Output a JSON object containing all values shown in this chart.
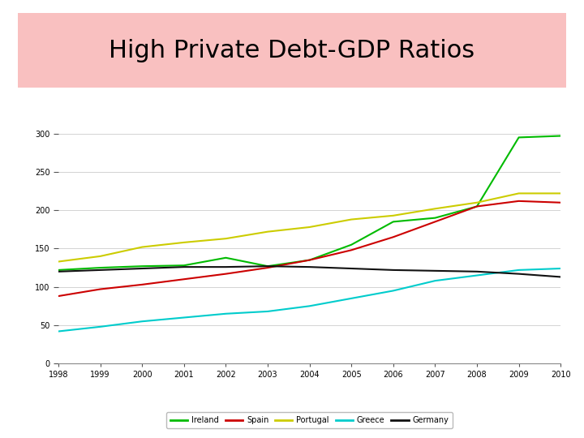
{
  "title": "High Private Debt-GDP Ratios",
  "title_fontsize": 22,
  "title_bg_color": "#f9c0c0",
  "title_border_color": "#d08080",
  "years": [
    1998,
    1999,
    2000,
    2001,
    2002,
    2003,
    2004,
    2005,
    2006,
    2007,
    2008,
    2009,
    2010
  ],
  "series": {
    "Ireland": {
      "color": "#00bb00",
      "values": [
        122,
        125,
        127,
        128,
        138,
        127,
        135,
        155,
        185,
        190,
        205,
        295,
        297
      ]
    },
    "Spain": {
      "color": "#cc0000",
      "values": [
        88,
        97,
        103,
        110,
        117,
        125,
        135,
        148,
        165,
        185,
        205,
        212,
        210
      ]
    },
    "Portugal": {
      "color": "#cccc00",
      "values": [
        133,
        140,
        152,
        158,
        163,
        172,
        178,
        188,
        193,
        202,
        210,
        222,
        222
      ]
    },
    "Greece": {
      "color": "#00cccc",
      "values": [
        42,
        48,
        55,
        60,
        65,
        68,
        75,
        85,
        95,
        108,
        115,
        122,
        124
      ]
    },
    "Germany": {
      "color": "#111111",
      "values": [
        120,
        122,
        124,
        126,
        126,
        127,
        126,
        124,
        122,
        121,
        120,
        117,
        113
      ]
    }
  },
  "xlim": [
    1998,
    2010
  ],
  "ylim": [
    0,
    320
  ],
  "yticks": [
    0,
    50,
    100,
    150,
    200,
    250,
    300
  ],
  "xticks": [
    1998,
    1999,
    2000,
    2001,
    2002,
    2003,
    2004,
    2005,
    2006,
    2007,
    2008,
    2009,
    2010
  ],
  "background_color": "#ffffff",
  "plot_bg_color": "#ffffff",
  "grid_color": "#cccccc",
  "linewidth": 1.5,
  "tick_fontsize": 7,
  "legend_fontsize": 7
}
